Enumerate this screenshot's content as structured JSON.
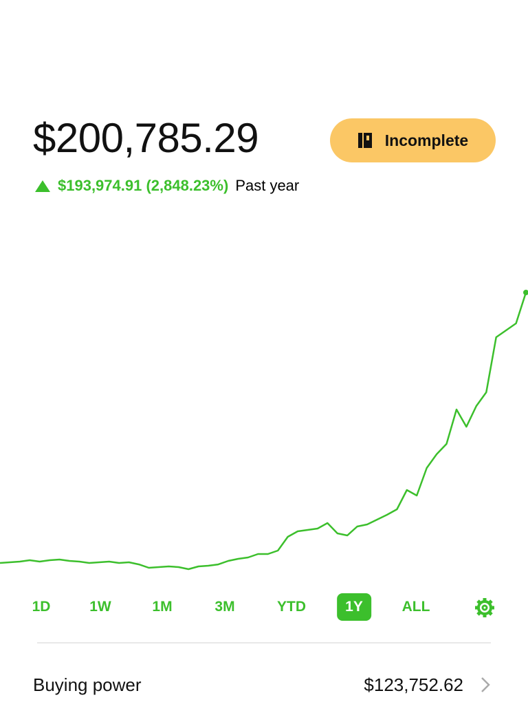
{
  "header": {
    "balance": "$200,785.29",
    "change": "$193,974.91 (2,848.23%)",
    "period": "Past year",
    "status_button": "Incomplete"
  },
  "chart_data": {
    "type": "line",
    "color": "#3cbf2c",
    "values": [
      6810,
      7300,
      7800,
      8800,
      7800,
      8800,
      9300,
      8300,
      7800,
      6810,
      7300,
      7800,
      6810,
      7300,
      5800,
      3360,
      3850,
      4340,
      3850,
      2370,
      4340,
      4840,
      5800,
      8300,
      9770,
      10760,
      13230,
      13230,
      15700,
      25560,
      29520,
      30500,
      31490,
      35440,
      28030,
      26550,
      32970,
      34450,
      37910,
      41360,
      45310,
      59130,
      55180,
      74930,
      84800,
      92200,
      116900,
      104500,
      119350,
      129200,
      168700,
      173650,
      178600,
      200785.29
    ]
  },
  "ranges": [
    "1D",
    "1W",
    "1M",
    "3M",
    "YTD",
    "1Y",
    "ALL"
  ],
  "selected_range": 5,
  "buying_power": {
    "label": "Buying power",
    "value": "$123,752.62"
  }
}
